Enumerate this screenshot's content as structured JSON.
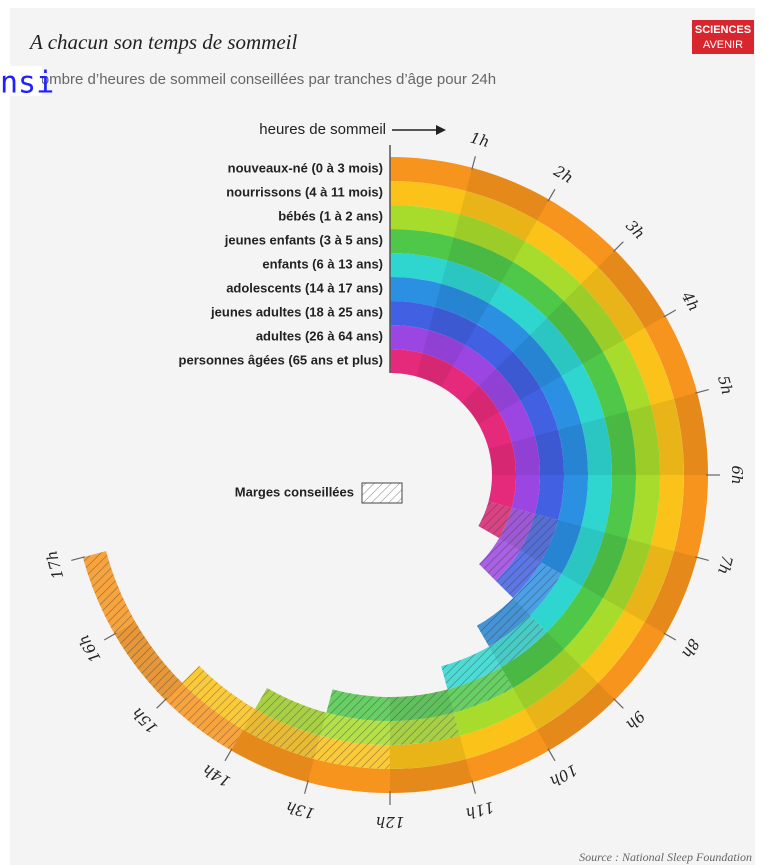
{
  "chart_data": {
    "type": "radial_bar",
    "title": "A chacun son temps de sommeil",
    "subtitle": "Nombre d’heures de sommeil conseillées par tranches d’âge pour 24h",
    "overlay_text": "nsi",
    "axis_label": "heures de sommeil",
    "legend_label": "Marges conseillées",
    "source": "Source : National Sleep Foundation",
    "logo": [
      "SCIENCES",
      "AVENIR"
    ],
    "categories": [
      "nouveaux-né (0 à 3 mois)",
      "nourrissons (4 à 11 mois)",
      "bébés (1 à 2 ans)",
      "jeunes enfants (3 à 5 ans)",
      "enfants (6 à 13 ans)",
      "adolescents (14 à 17 ans)",
      "jeunes adultes (18 à 25 ans)",
      "adultes (26 à 64 ans)",
      "personnes âgées (65 ans et plus)"
    ],
    "min": [
      14,
      12,
      11,
      10,
      9,
      8,
      7,
      7,
      7
    ],
    "max": [
      17,
      15,
      14,
      13,
      11,
      10,
      9,
      9,
      8
    ],
    "colors": [
      "#f7941d",
      "#fbc219",
      "#a8dc2c",
      "#4fc84a",
      "#2fd6d0",
      "#2b8fe2",
      "#4160e2",
      "#9b45e2",
      "#e62a7b"
    ],
    "thetalim": [
      0,
      24
    ],
    "ticks": [
      {
        "value": 1,
        "label": "1h"
      },
      {
        "value": 2,
        "label": "2h"
      },
      {
        "value": 3,
        "label": "3h"
      },
      {
        "value": 4,
        "label": "4h"
      },
      {
        "value": 5,
        "label": "5h"
      },
      {
        "value": 6,
        "label": "6h"
      },
      {
        "value": 7,
        "label": "7h"
      },
      {
        "value": 8,
        "label": "8h"
      },
      {
        "value": 9,
        "label": "9h"
      },
      {
        "value": 10,
        "label": "10h"
      },
      {
        "value": 11,
        "label": "11h"
      },
      {
        "value": 12,
        "label": "12h"
      },
      {
        "value": 13,
        "label": "13h"
      },
      {
        "value": 14,
        "label": "14h"
      },
      {
        "value": 15,
        "label": "15h"
      },
      {
        "value": 16,
        "label": "16h"
      },
      {
        "value": 17,
        "label": "17h"
      }
    ]
  }
}
